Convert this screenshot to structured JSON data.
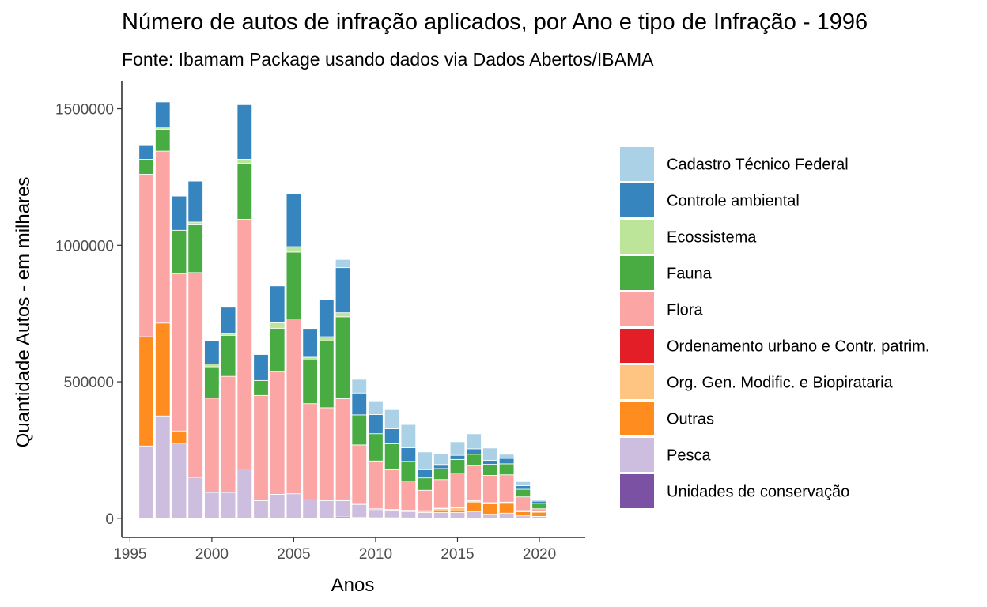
{
  "chart_data": {
    "type": "bar",
    "stacked": true,
    "title": "Número de autos de infração aplicados, por Ano e tipo de Infração - 1996",
    "subtitle": "Fonte: Ibamam Package usando dados via Dados Abertos/IBAMA",
    "xlabel": "Anos",
    "ylabel": "Quantidade Autos - em milhares",
    "xlim": [
      1994.5,
      2022.8
    ],
    "ylim": [
      -70000,
      1600000
    ],
    "x_ticks": [
      1995,
      2000,
      2005,
      2010,
      2015,
      2020
    ],
    "y_ticks": [
      0,
      500000,
      1000000,
      1500000
    ],
    "grid": false,
    "legend_position": "right",
    "x": [
      1996,
      1997,
      1998,
      1999,
      2000,
      2001,
      2002,
      2003,
      2004,
      2005,
      2006,
      2007,
      2008,
      2009,
      2010,
      2011,
      2012,
      2013,
      2014,
      2015,
      2016,
      2017,
      2018,
      2019,
      2020,
      2021
    ],
    "series": [
      {
        "name": "Unidades de conservação",
        "color": "#7b52a3",
        "values": [
          0,
          0,
          0,
          0,
          0,
          0,
          0,
          0,
          0,
          0,
          0,
          0,
          5000,
          3000,
          2000,
          2000,
          1500,
          1000,
          1000,
          1000,
          1000,
          1000,
          1000,
          1000,
          1000,
          0
        ]
      },
      {
        "name": "Pesca",
        "color": "#cdbdde",
        "values": [
          265000,
          375000,
          275000,
          150000,
          95000,
          95000,
          180000,
          65000,
          88000,
          90000,
          68000,
          65000,
          60000,
          48000,
          30000,
          26000,
          24000,
          20000,
          20000,
          20000,
          24000,
          14000,
          18000,
          8000,
          6000,
          0
        ]
      },
      {
        "name": "Outras",
        "color": "#fe8c1f",
        "values": [
          400000,
          340000,
          45000,
          0,
          0,
          0,
          0,
          0,
          0,
          0,
          0,
          0,
          0,
          0,
          0,
          0,
          0,
          0,
          6000,
          6000,
          32000,
          38000,
          36000,
          15000,
          16000,
          2000
        ]
      },
      {
        "name": "Org. Gen. Modific. e Biopirataria",
        "color": "#fdc581",
        "values": [
          0,
          0,
          0,
          0,
          0,
          0,
          0,
          0,
          0,
          0,
          0,
          0,
          0,
          0,
          0,
          2000,
          1000,
          5000,
          8000,
          12000,
          6000,
          3000,
          3000,
          3000,
          1000,
          0
        ]
      },
      {
        "name": "Ordenamento urbano e Contr. patrim.",
        "color": "#e31e26",
        "values": [
          0,
          0,
          0,
          0,
          0,
          0,
          0,
          0,
          0,
          0,
          0,
          0,
          3000,
          3000,
          3000,
          3000,
          3000,
          2000,
          2000,
          1500,
          1500,
          1500,
          1500,
          1500,
          1000,
          0
        ]
      },
      {
        "name": "Flora",
        "color": "#fca5a5",
        "values": [
          595000,
          630000,
          575000,
          750000,
          345000,
          425000,
          915000,
          385000,
          448000,
          640000,
          352000,
          340000,
          370000,
          215000,
          175000,
          145000,
          107000,
          75000,
          105000,
          125000,
          130000,
          100000,
          100000,
          50000,
          10000,
          0
        ]
      },
      {
        "name": "Fauna",
        "color": "#48ac43",
        "values": [
          55000,
          80000,
          160000,
          175000,
          115000,
          150000,
          205000,
          55000,
          160000,
          245000,
          160000,
          245000,
          300000,
          110000,
          100000,
          95000,
          72000,
          45000,
          40000,
          50000,
          40000,
          40000,
          40000,
          28000,
          20000,
          0
        ]
      },
      {
        "name": "Ecossistema",
        "color": "#bde59a",
        "values": [
          0,
          5000,
          0,
          10000,
          10000,
          8000,
          15000,
          0,
          20000,
          20000,
          10000,
          15000,
          15000,
          0,
          0,
          0,
          0,
          0,
          0,
          0,
          0,
          0,
          0,
          0,
          0,
          0
        ]
      },
      {
        "name": "Controle ambiental",
        "color": "#3785bf",
        "values": [
          50000,
          95000,
          125000,
          150000,
          85000,
          95000,
          200000,
          95000,
          135000,
          195000,
          105000,
          135000,
          165000,
          80000,
          70000,
          55000,
          50000,
          30000,
          15000,
          15000,
          20000,
          15000,
          20000,
          13000,
          8000,
          0
        ]
      },
      {
        "name": "Cadastro Técnico Federal",
        "color": "#abd1e6",
        "values": [
          0,
          0,
          0,
          0,
          0,
          0,
          0,
          0,
          0,
          0,
          0,
          0,
          30000,
          50000,
          50000,
          70000,
          85000,
          65000,
          40000,
          50000,
          55000,
          45000,
          15000,
          15000,
          5000,
          0
        ]
      }
    ],
    "legend_order": [
      "Cadastro Técnico Federal",
      "Controle ambiental",
      "Ecossistema",
      "Fauna",
      "Flora",
      "Ordenamento urbano e Contr. patrim.",
      "Org. Gen. Modific. e Biopiratearia",
      "Outras",
      "Pesca",
      "Unidades de conservação"
    ]
  }
}
